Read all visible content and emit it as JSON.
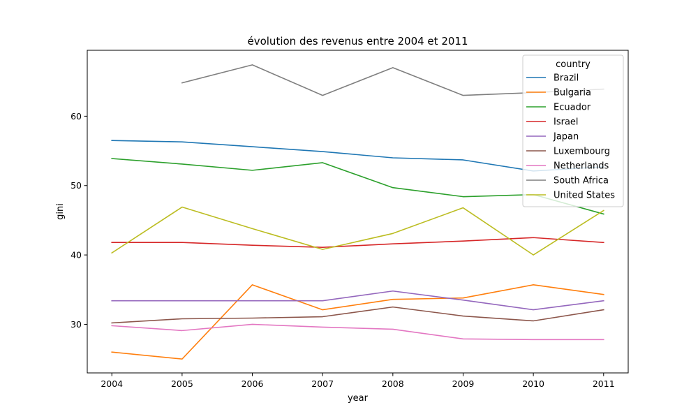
{
  "chart_data": {
    "type": "line",
    "title": "évolution des revenus entre 2004 et 2011",
    "xlabel": "year",
    "ylabel": "gini",
    "x": [
      2004,
      2005,
      2006,
      2007,
      2008,
      2009,
      2010,
      2011
    ],
    "x_ticks": [
      "2004",
      "2005",
      "2006",
      "2007",
      "2008",
      "2009",
      "2010",
      "2011"
    ],
    "y_ticks": [
      "30",
      "40",
      "50",
      "60"
    ],
    "xlim": [
      2003.65,
      2011.35
    ],
    "ylim": [
      23.0,
      69.5
    ],
    "grid": false,
    "legend": {
      "title": "country",
      "position": "top-right"
    },
    "series": [
      {
        "name": "Brazil",
        "color": "#1f77b4",
        "values": [
          56.5,
          56.3,
          55.6,
          54.9,
          54.0,
          53.7,
          52.1,
          52.7
        ]
      },
      {
        "name": "Bulgaria",
        "color": "#ff7f0e",
        "values": [
          26.0,
          25.0,
          35.7,
          32.1,
          33.6,
          33.8,
          35.7,
          34.3
        ]
      },
      {
        "name": "Ecuador",
        "color": "#2ca02c",
        "values": [
          53.9,
          53.1,
          52.2,
          53.3,
          49.7,
          48.4,
          48.7,
          45.9
        ]
      },
      {
        "name": "Israel",
        "color": "#d62728",
        "values": [
          41.8,
          41.8,
          41.4,
          41.1,
          41.6,
          42.0,
          42.5,
          41.8
        ]
      },
      {
        "name": "Japan",
        "color": "#9467bd",
        "values": [
          33.4,
          33.4,
          33.4,
          33.4,
          34.8,
          33.5,
          32.1,
          33.4
        ]
      },
      {
        "name": "Luxembourg",
        "color": "#8c564b",
        "values": [
          30.2,
          30.8,
          30.9,
          31.1,
          32.5,
          31.2,
          30.5,
          32.1
        ]
      },
      {
        "name": "Netherlands",
        "color": "#e377c2",
        "values": [
          29.8,
          29.1,
          30.0,
          29.6,
          29.3,
          27.9,
          27.8,
          27.8
        ]
      },
      {
        "name": "South Africa",
        "color": "#7f7f7f",
        "values": [
          null,
          64.8,
          67.4,
          63.0,
          67.0,
          63.0,
          63.4,
          63.9
        ]
      },
      {
        "name": "United States",
        "color": "#bcbd22",
        "values": [
          40.3,
          46.9,
          43.8,
          40.8,
          43.1,
          46.8,
          40.0,
          46.4
        ]
      }
    ]
  }
}
